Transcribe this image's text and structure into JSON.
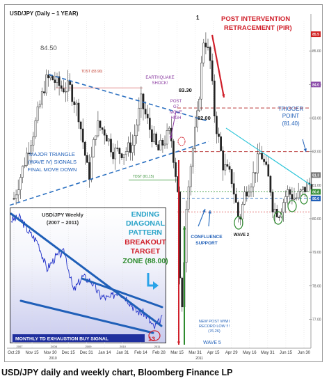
{
  "caption": "USD/JPY daily and weekly chart, Bloomberg Finance LP",
  "chart_data": [
    {
      "type": "candlestick",
      "title": "USD/JPY (Daily – 1 YEAR)",
      "x_ticks": [
        "Oct 29",
        "Nov 15",
        "Nov 30",
        "Dec 15",
        "Dec 31",
        "Jan 14",
        "Jan 31",
        "Feb 14",
        "Feb 28",
        "Mar 15",
        "Mar 31",
        "Apr 15",
        "Apr 29",
        "May 16",
        "May 31",
        "Jun 15",
        "Jun 30"
      ],
      "x_year_labels": [
        "2010",
        "2011"
      ],
      "y_tick_labels": [
        "85.00",
        "84.00",
        "83.00",
        "82.00",
        "81.00",
        "80.00",
        "79.00",
        "78.00",
        "77.00"
      ],
      "ylim": [
        76.2,
        86.0
      ],
      "price_path": [
        {
          "date": "Oct 29",
          "close": 80.6
        },
        {
          "date": "Nov 5",
          "close": 81.4
        },
        {
          "date": "Nov 15",
          "close": 82.6
        },
        {
          "date": "Nov 25",
          "close": 84.1
        },
        {
          "date": "Nov 30",
          "close": 84.2
        },
        {
          "date": "Dec 8",
          "close": 83.9
        },
        {
          "date": "Dec 15",
          "close": 83.9
        },
        {
          "date": "Dec 22",
          "close": 83.2
        },
        {
          "date": "Dec 31",
          "close": 81.2
        },
        {
          "date": "Jan 7",
          "close": 82.8
        },
        {
          "date": "Jan 14",
          "close": 82.6
        },
        {
          "date": "Jan 21",
          "close": 82.0
        },
        {
          "date": "Jan 31",
          "close": 82.0
        },
        {
          "date": "Feb 7",
          "close": 82.2
        },
        {
          "date": "Feb 14",
          "close": 83.5
        },
        {
          "date": "Feb 22",
          "close": 82.6
        },
        {
          "date": "Feb 28",
          "close": 82.0
        },
        {
          "date": "Mar 8",
          "close": 82.6
        },
        {
          "date": "Mar 15",
          "close": 80.7
        },
        {
          "date": "Mar 17",
          "close": 76.3
        },
        {
          "date": "Mar 22",
          "close": 80.8
        },
        {
          "date": "Mar 31",
          "close": 83.1
        },
        {
          "date": "Apr 6",
          "close": 85.5
        },
        {
          "date": "Apr 11",
          "close": 84.7
        },
        {
          "date": "Apr 15",
          "close": 83.0
        },
        {
          "date": "Apr 22",
          "close": 81.6
        },
        {
          "date": "Apr 29",
          "close": 81.2
        },
        {
          "date": "May 5",
          "close": 79.9
        },
        {
          "date": "May 10",
          "close": 80.8
        },
        {
          "date": "May 16",
          "close": 81.2
        },
        {
          "date": "May 23",
          "close": 82.0
        },
        {
          "date": "May 31",
          "close": 81.0
        },
        {
          "date": "Jun 3",
          "close": 80.3
        },
        {
          "date": "Jun 8",
          "close": 80.2
        },
        {
          "date": "Jun 15",
          "close": 80.8
        },
        {
          "date": "Jun 22",
          "close": 80.6
        },
        {
          "date": "Jun 30",
          "close": 80.9
        },
        {
          "date": "Jul 5",
          "close": 81.1
        }
      ],
      "price_tags": [
        {
          "value": "85.5",
          "color": "#d02020"
        },
        {
          "value": "84.0",
          "color": "#8a4aa8"
        },
        {
          "value": "81.3",
          "color": "#777777"
        },
        {
          "value": "80.8",
          "color": "#2e8b2e"
        },
        {
          "value": "80.6",
          "color": "#1f5fb8"
        }
      ],
      "annotations": [
        {
          "text": "1",
          "color": "#000000"
        },
        {
          "text": "POST INTERVENTION",
          "color": "#d0202b"
        },
        {
          "text": "RETRACEMENT (PIR)",
          "color": "#d0202b"
        },
        {
          "text": "84.50",
          "color": "#555555"
        },
        {
          "text": "TDST (83.90)",
          "color": "#c0392b"
        },
        {
          "text": "EARTHQUAKE",
          "color": "#8a3aa0"
        },
        {
          "text": "SHOCK!",
          "color": "#8a3aa0"
        },
        {
          "text": "83.30",
          "color": "#111111"
        },
        {
          "text": "POST",
          "color": "#8a3aa0"
        },
        {
          "text": "G7",
          "color": "#8a3aa0"
        },
        {
          "text": "MOVE",
          "color": "#8a3aa0"
        },
        {
          "text": "HIGH",
          "color": "#8a3aa0"
        },
        {
          "text": "TRIGGER",
          "color": "#1f5fb8"
        },
        {
          "text": "POINT",
          "color": "#1f5fb8"
        },
        {
          "text": "(81.40)",
          "color": "#1f5fb8"
        },
        {
          "text": "82.00",
          "color": "#111111"
        },
        {
          "text": "MAJOR TRIANGLE",
          "color": "#1f5fb8"
        },
        {
          "text": "(WAVE IV) SIGNALS",
          "color": "#1f5fb8"
        },
        {
          "text": "FINAL MOVE DOWN",
          "color": "#1f5fb8"
        },
        {
          "text": "TDST (81.15)",
          "color": "#2e8b2e"
        },
        {
          "text": "ENDING",
          "color": "#29a3c8"
        },
        {
          "text": "DIAGONAL",
          "color": "#29a3c8"
        },
        {
          "text": "PATTERN",
          "color": "#29a3c8"
        },
        {
          "text": "BREAKOUT",
          "color": "#d0202b"
        },
        {
          "text": "TARGET",
          "color": "#d0202b"
        },
        {
          "text": "ZONE (88.00)",
          "color": "#2e8b2e"
        },
        {
          "text": "CONFLUENCE",
          "color": "#1f5fb8"
        },
        {
          "text": "SUPPORT",
          "color": "#1f5fb8"
        },
        {
          "text": "WAVE 2",
          "color": "#111111"
        },
        {
          "text": "NEW POST WWII",
          "color": "#1f5fb8"
        },
        {
          "text": "RECORD LOW !!!",
          "color": "#1f5fb8"
        },
        {
          "text": "(76.26)",
          "color": "#1f5fb8"
        },
        {
          "text": "WAVE 5",
          "color": "#1f5fb8"
        }
      ]
    },
    {
      "type": "line",
      "title": "USD/JPY Weekly",
      "subtitle": "(2007 – 2011)",
      "x_ticks": [
        "2007",
        "2008",
        "2009",
        "2010",
        "2011"
      ],
      "weekly_path": [
        {
          "date": "2007 Q1",
          "value": 121
        },
        {
          "date": "2007 Q2",
          "value": 122
        },
        {
          "date": "2007 Q3",
          "value": 116
        },
        {
          "date": "2007 Q4",
          "value": 112
        },
        {
          "date": "2008 Q1",
          "value": 101
        },
        {
          "date": "2008 Q2",
          "value": 106
        },
        {
          "date": "2008 Q3",
          "value": 108
        },
        {
          "date": "2008 Q4",
          "value": 92
        },
        {
          "date": "2009 Q1",
          "value": 98
        },
        {
          "date": "2009 Q2",
          "value": 96
        },
        {
          "date": "2009 Q3",
          "value": 90
        },
        {
          "date": "2009 Q4",
          "value": 89
        },
        {
          "date": "2010 Q1",
          "value": 92
        },
        {
          "date": "2010 Q2",
          "value": 89
        },
        {
          "date": "2010 Q3",
          "value": 84
        },
        {
          "date": "2010 Q4",
          "value": 83
        },
        {
          "date": "2011 Q1",
          "value": 77
        },
        {
          "date": "2011 Q2",
          "value": 81
        }
      ],
      "annotations": [
        {
          "text": "MONTHLY TD EXHAUSTION BUY SIGNAL",
          "color": "#ffffff"
        },
        {
          "text": "13",
          "color": "#d0202b"
        }
      ]
    }
  ]
}
